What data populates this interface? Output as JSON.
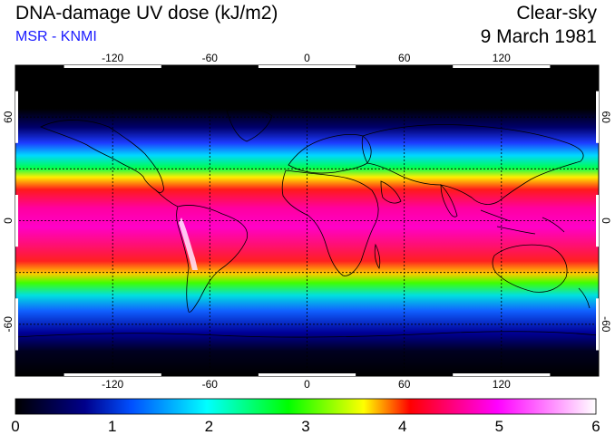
{
  "title": "DNA-damage UV dose (kJ/m2)",
  "subtitle": "MSR - KNMI",
  "condition": "Clear-sky",
  "date": "9 March 1981",
  "map": {
    "lon_ticks": [
      "-120",
      "-60",
      "0",
      "60",
      "120"
    ],
    "lat_ticks_left": [
      "60",
      "0",
      "-60"
    ],
    "lat_ticks_right": [
      "60",
      "0",
      "-60"
    ],
    "gridlines": "dashed",
    "lon_range": [
      -180,
      180
    ],
    "lat_range": [
      -90,
      90
    ]
  },
  "colorbar": {
    "labels": [
      "0",
      "1",
      "2",
      "3",
      "4",
      "5",
      "6"
    ],
    "range": [
      0,
      6
    ],
    "colors": [
      "#000000",
      "#00008b",
      "#0050ff",
      "#00ffff",
      "#00ff00",
      "#ffff00",
      "#ff0000",
      "#ff00ff",
      "#ffffff"
    ]
  }
}
